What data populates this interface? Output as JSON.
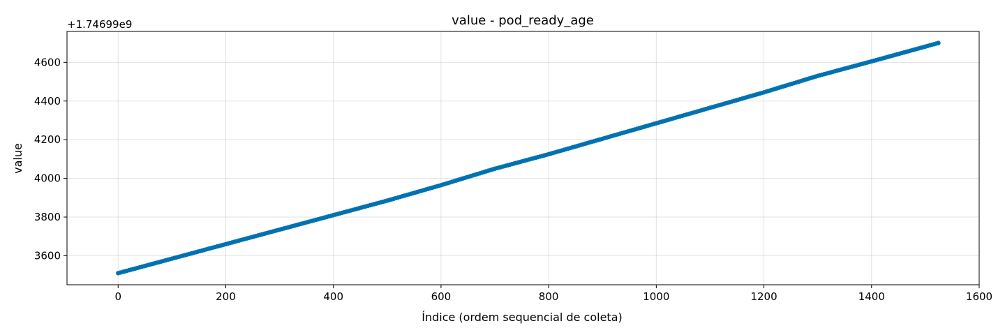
{
  "chart_data": {
    "type": "line",
    "title": "value - pod_ready_age",
    "xlabel": "Índice (ordem sequencial de coleta)",
    "ylabel": "value",
    "y_offset_label": "+1.74699e9",
    "xlim": [
      -95,
      1600
    ],
    "ylim": [
      3450,
      4760
    ],
    "x_ticks": [
      0,
      200,
      400,
      600,
      800,
      1000,
      1200,
      1400,
      1600
    ],
    "y_ticks": [
      3600,
      3800,
      4000,
      4200,
      4400,
      4600
    ],
    "x_tick_labels": [
      "0",
      "200",
      "400",
      "600",
      "800",
      "1000",
      "1200",
      "1400",
      "1600"
    ],
    "y_tick_labels": [
      "3600",
      "3800",
      "4000",
      "4200",
      "4400",
      "4600"
    ],
    "grid": true,
    "marker": "circle",
    "series": [
      {
        "color": "#0072B2",
        "x": [
          0,
          100,
          200,
          300,
          400,
          500,
          600,
          700,
          800,
          900,
          1000,
          1100,
          1200,
          1300,
          1400,
          1524
        ],
        "y": [
          3510,
          3585,
          3660,
          3735,
          3810,
          3885,
          3965,
          4050,
          4125,
          4205,
          4285,
          4365,
          4445,
          4530,
          4605,
          4700
        ]
      }
    ]
  }
}
